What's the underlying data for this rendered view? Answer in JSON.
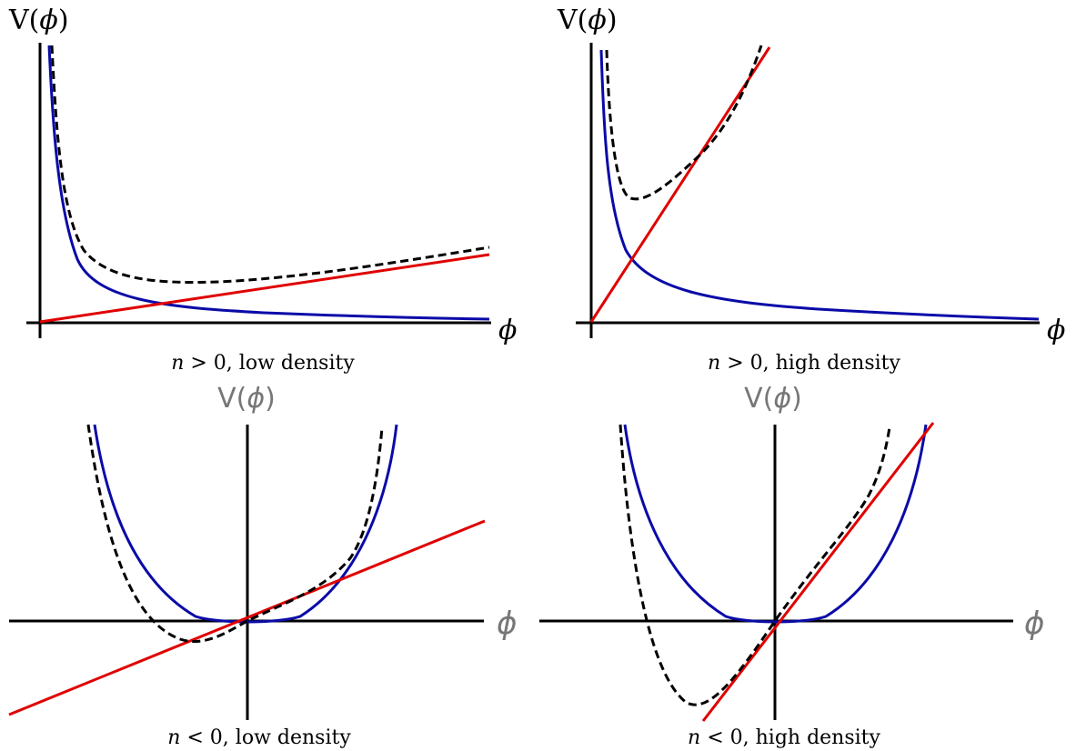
{
  "colors": {
    "axis": "#000000",
    "chameleon_potential": "#0a0aa8",
    "matter_coupling": "#e00000",
    "effective_potential": "#000000",
    "top_axis_label": "#000000",
    "bottom_axis_label": "#777777"
  },
  "panels": [
    {
      "y_label": "V(",
      "y_label_symbol": "ϕ",
      "y_label_close": ")",
      "x_label": "ϕ",
      "caption_var": "n",
      "caption_rel": " > 0, ",
      "caption_rest": "low density"
    },
    {
      "y_label": "V(",
      "y_label_symbol": "ϕ",
      "y_label_close": ")",
      "x_label": "ϕ",
      "caption_var": "n",
      "caption_rel": " > 0, ",
      "caption_rest": "high density"
    },
    {
      "y_label": "V(",
      "y_label_symbol": "ϕ",
      "y_label_close": ")",
      "x_label": "ϕ",
      "caption_var": "n",
      "caption_rel": " < 0, ",
      "caption_rest": "low density"
    },
    {
      "y_label": "V(",
      "y_label_symbol": "ϕ",
      "y_label_close": ")",
      "x_label": "ϕ",
      "caption_var": "n",
      "caption_rel": " < 0, ",
      "caption_rest": "high density"
    }
  ]
}
